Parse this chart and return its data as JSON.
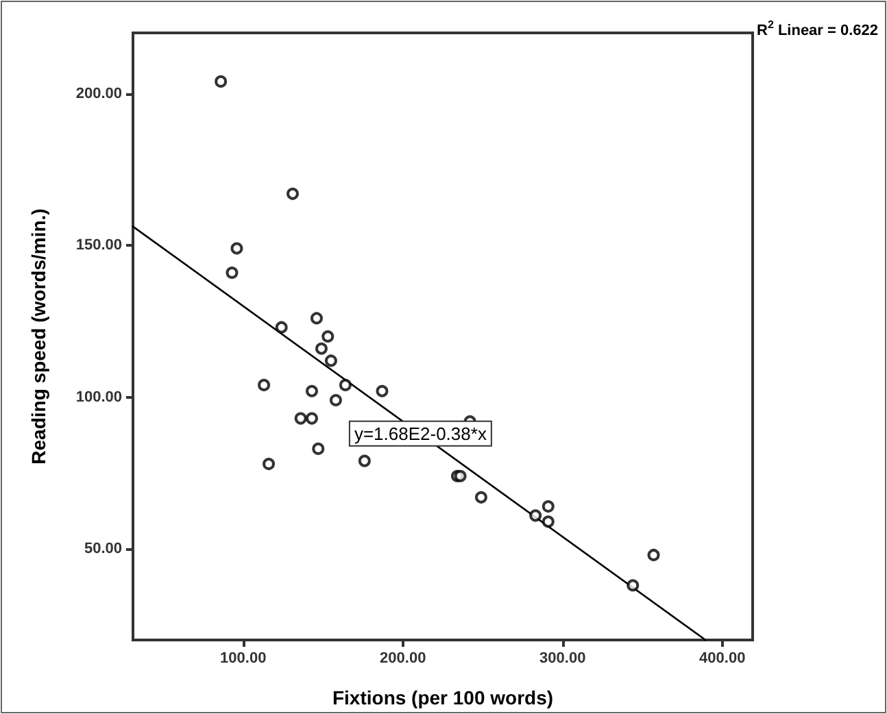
{
  "chart_data": {
    "type": "scatter",
    "xlabel": "Fixtions (per 100 words)",
    "ylabel": "Reading speed (words/min.)",
    "annotations": [
      "R$^{2}$ Linear = 0.622",
      {
        "text": "y=1.68E2-0.38*x",
        "x": 211,
        "y": 88
      }
    ],
    "xlim": [
      31,
      419
    ],
    "ylim": [
      20,
      220
    ],
    "xticks": [
      {
        "value": 100,
        "label": "100.00"
      },
      {
        "value": 200,
        "label": "200.00"
      },
      {
        "value": 300,
        "label": "300.00"
      },
      {
        "value": 400,
        "label": "400.00"
      }
    ],
    "yticks": [
      {
        "value": 50,
        "label": "50.00"
      },
      {
        "value": 100,
        "label": "100.00"
      },
      {
        "value": 150,
        "label": "150.00"
      },
      {
        "value": 200,
        "label": "200.00"
      }
    ],
    "grid": false,
    "marker": "circle",
    "series": [
      {
        "color": "#000000",
        "x": [
          86,
          131,
          96,
          93,
          146,
          124,
          153,
          149,
          155,
          113,
          164,
          187,
          143,
          158,
          136,
          143,
          242,
          147,
          116,
          176,
          234,
          236,
          249,
          291,
          283,
          291,
          357,
          344
        ],
        "values": [
          204,
          167,
          149,
          141,
          126,
          123,
          120,
          116,
          112,
          104,
          104,
          102,
          102,
          99,
          93,
          93,
          92,
          83,
          78,
          79,
          74,
          74,
          67,
          64,
          61,
          59,
          48,
          38
        ]
      },
      {
        "type": "line",
        "color": "#000000",
        "marker": "none",
        "line_style": "solid",
        "x": [
          31,
          389.5
        ],
        "values": [
          156.2,
          20
        ]
      }
    ]
  }
}
